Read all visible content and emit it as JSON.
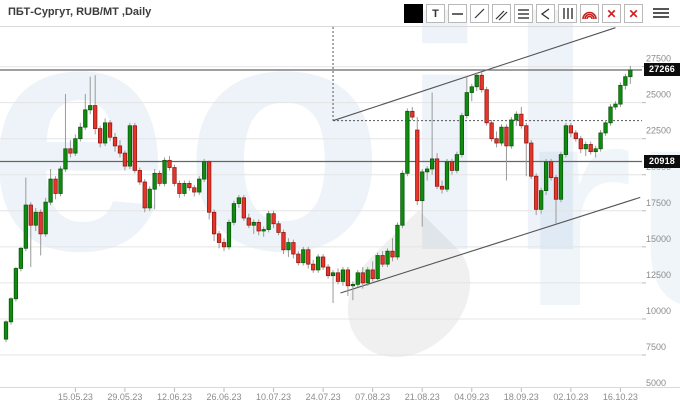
{
  "header": {
    "title": "ПБТ-Сургут, RUB/МТ ,Daily"
  },
  "toolbar": {
    "buttons": [
      {
        "name": "color-swatch",
        "icon": "swatch",
        "label": ""
      },
      {
        "name": "text-tool",
        "icon": "text",
        "label": "T"
      },
      {
        "name": "horizontal-line-tool",
        "icon": "hline",
        "label": ""
      },
      {
        "name": "trend-line-tool",
        "icon": "diag",
        "label": ""
      },
      {
        "name": "parallel-channel-tool",
        "icon": "diag2",
        "label": ""
      },
      {
        "name": "fib-retracement-tool",
        "icon": "hlines3",
        "label": ""
      },
      {
        "name": "pitchfork-tool",
        "icon": "angle",
        "label": ""
      },
      {
        "name": "fib-time-zones-tool",
        "icon": "vlines3",
        "label": ""
      },
      {
        "name": "fib-arcs-tool",
        "icon": "arcs",
        "label": ""
      },
      {
        "name": "remove-drawing-button",
        "icon": "cross",
        "label": "✕"
      },
      {
        "name": "remove-all-drawings-button",
        "icon": "cross",
        "label": "✕"
      }
    ],
    "menu_icon": "hamburger-icon"
  },
  "price_badges": {
    "last": "27266",
    "level": "20918"
  },
  "watermark": {
    "text_left": "eoil",
    "text_right": "ru"
  },
  "chart_data": {
    "type": "candlestick",
    "title": "ПБТ-Сургут",
    "unit": "RUB/МТ",
    "timeframe": "Daily",
    "legend_position": "none",
    "grid": "horizontal",
    "ylim": [
      5000,
      30000
    ],
    "y_ticks": [
      27500,
      25000,
      22500,
      20000,
      17500,
      15000,
      12500,
      10000,
      7500,
      5000
    ],
    "x_tick_labels": [
      "15.05.23",
      "29.05.23",
      "12.06.23",
      "26.06.23",
      "10.07.23",
      "24.07.23",
      "07.08.23",
      "21.08.23",
      "04.09.23",
      "18.09.23",
      "02.10.23",
      "16.10.23"
    ],
    "x_tick_first_index": 14,
    "x_tick_step": 10,
    "last_price": 27266,
    "marked_level": 20918,
    "dashed_level": 23750,
    "colors": {
      "up": "#0f8b0f",
      "up_border": "#0a560a",
      "down": "#e5352b",
      "down_border": "#8f1710",
      "wick": "#9a9a9a",
      "line": "#666666",
      "grid": "#e4e4e4",
      "axis_text": "#8c8c8c"
    },
    "annotations": {
      "upper_trendline": {
        "from": {
          "index": 66,
          "price": 23750
        },
        "to": {
          "index": 123,
          "price": 30200
        }
      },
      "support_trendline": {
        "from": {
          "index": 67.5,
          "price": 11800
        },
        "to": {
          "index": 128,
          "price": 18430
        }
      },
      "dashed_vertical_index": 66
    },
    "candles": [
      [
        8600,
        9900,
        8400,
        9800
      ],
      [
        9800,
        11500,
        9600,
        11400
      ],
      [
        11400,
        13600,
        11200,
        13500
      ],
      [
        13500,
        15000,
        13300,
        14900
      ],
      [
        14900,
        19800,
        14700,
        17900
      ],
      [
        17900,
        18100,
        13600,
        16500
      ],
      [
        16500,
        17700,
        16100,
        17400
      ],
      [
        17400,
        17600,
        14400,
        15900
      ],
      [
        15900,
        18400,
        15700,
        18100
      ],
      [
        18100,
        20400,
        17900,
        19700
      ],
      [
        19700,
        19900,
        18300,
        18700
      ],
      [
        18700,
        20600,
        18500,
        20400
      ],
      [
        20400,
        25600,
        20200,
        21800
      ],
      [
        21800,
        22400,
        21200,
        21500
      ],
      [
        21500,
        22800,
        21300,
        22500
      ],
      [
        22500,
        23600,
        22300,
        23300
      ],
      [
        23300,
        25600,
        23100,
        24500
      ],
      [
        24500,
        26800,
        24200,
        24800
      ],
      [
        24800,
        26900,
        22800,
        23200
      ],
      [
        23200,
        23400,
        21900,
        22200
      ],
      [
        22200,
        23900,
        22000,
        23600
      ],
      [
        23600,
        23800,
        22300,
        22600
      ],
      [
        22600,
        22900,
        21600,
        22000
      ],
      [
        22000,
        22400,
        21200,
        21500
      ],
      [
        21500,
        21700,
        20300,
        20600
      ],
      [
        20600,
        23600,
        20400,
        23400
      ],
      [
        23400,
        23600,
        20100,
        20300
      ],
      [
        20300,
        20500,
        19300,
        19500
      ],
      [
        19500,
        19700,
        17400,
        17700
      ],
      [
        17700,
        19200,
        17500,
        19000
      ],
      [
        19000,
        20400,
        17600,
        20100
      ],
      [
        20100,
        20300,
        19200,
        19400
      ],
      [
        19400,
        21200,
        19200,
        21000
      ],
      [
        21000,
        21300,
        20300,
        20500
      ],
      [
        20500,
        20700,
        19200,
        19400
      ],
      [
        19400,
        19600,
        18400,
        18700
      ],
      [
        18700,
        19600,
        18500,
        19400
      ],
      [
        19400,
        19600,
        18900,
        19100
      ],
      [
        19100,
        19300,
        18500,
        18800
      ],
      [
        18800,
        19900,
        18600,
        19700
      ],
      [
        19700,
        21100,
        19500,
        20900
      ],
      [
        20900,
        21000,
        16900,
        17400
      ],
      [
        17400,
        17600,
        15400,
        15900
      ],
      [
        15900,
        16100,
        14900,
        15300
      ],
      [
        15300,
        15600,
        14700,
        15000
      ],
      [
        15000,
        16900,
        14800,
        16700
      ],
      [
        16700,
        18200,
        16500,
        18000
      ],
      [
        18000,
        18600,
        17700,
        18400
      ],
      [
        18400,
        18600,
        16800,
        17000
      ],
      [
        17000,
        17300,
        16300,
        16500
      ],
      [
        16500,
        16900,
        15900,
        16700
      ],
      [
        16700,
        16900,
        15800,
        16100
      ],
      [
        16100,
        16400,
        15700,
        16200
      ],
      [
        16200,
        17500,
        16000,
        17300
      ],
      [
        17300,
        17500,
        16300,
        16600
      ],
      [
        16600,
        16800,
        15800,
        16000
      ],
      [
        16000,
        16200,
        14500,
        14800
      ],
      [
        14800,
        15600,
        14300,
        15300
      ],
      [
        15300,
        15500,
        14200,
        14500
      ],
      [
        14500,
        14700,
        13700,
        13900
      ],
      [
        13900,
        15000,
        13700,
        14800
      ],
      [
        14800,
        15000,
        13500,
        13800
      ],
      [
        13800,
        14100,
        13200,
        13400
      ],
      [
        13400,
        14500,
        13200,
        14300
      ],
      [
        14300,
        14500,
        13400,
        13600
      ],
      [
        13600,
        13800,
        12800,
        13000
      ],
      [
        13000,
        13400,
        11100,
        13200
      ],
      [
        13200,
        13500,
        12400,
        12600
      ],
      [
        12600,
        13600,
        12300,
        13400
      ],
      [
        13400,
        13600,
        11600,
        12300
      ],
      [
        12300,
        12600,
        11300,
        12400
      ],
      [
        12400,
        13400,
        12200,
        13200
      ],
      [
        13200,
        13600,
        12100,
        12500
      ],
      [
        12500,
        13600,
        12300,
        13400
      ],
      [
        13400,
        14000,
        12600,
        12800
      ],
      [
        12800,
        14600,
        12700,
        14400
      ],
      [
        14400,
        14700,
        13600,
        13800
      ],
      [
        13800,
        14900,
        13600,
        14700
      ],
      [
        14700,
        15600,
        14000,
        14300
      ],
      [
        14300,
        16700,
        14100,
        16500
      ],
      [
        16500,
        20300,
        16300,
        20100
      ],
      [
        20100,
        24600,
        19900,
        24400
      ],
      [
        24400,
        24700,
        23800,
        24000
      ],
      [
        23100,
        24000,
        17900,
        18200
      ],
      [
        18200,
        20400,
        16400,
        20200
      ],
      [
        20200,
        20600,
        19600,
        20400
      ],
      [
        20400,
        25700,
        20000,
        21100
      ],
      [
        21100,
        21500,
        19000,
        19200
      ],
      [
        19200,
        19600,
        18700,
        19000
      ],
      [
        19000,
        21100,
        18800,
        20900
      ],
      [
        20900,
        21100,
        20000,
        20300
      ],
      [
        20300,
        21600,
        20100,
        21400
      ],
      [
        21400,
        24300,
        21200,
        24100
      ],
      [
        24100,
        26800,
        23900,
        25700
      ],
      [
        25700,
        26300,
        25100,
        26100
      ],
      [
        26100,
        27100,
        25800,
        26900
      ],
      [
        26900,
        27100,
        25700,
        25900
      ],
      [
        25900,
        26100,
        23400,
        23600
      ],
      [
        23600,
        23800,
        22300,
        22500
      ],
      [
        22500,
        23000,
        21900,
        22200
      ],
      [
        22200,
        23500,
        22000,
        23300
      ],
      [
        23300,
        23500,
        19600,
        22000
      ],
      [
        22000,
        24000,
        21800,
        23800
      ],
      [
        23800,
        24400,
        23400,
        24200
      ],
      [
        24200,
        24700,
        23200,
        23400
      ],
      [
        23400,
        23600,
        19900,
        22200
      ],
      [
        22200,
        22400,
        19700,
        19900
      ],
      [
        19900,
        20100,
        17200,
        17600
      ],
      [
        17600,
        19100,
        17300,
        18900
      ],
      [
        18900,
        21100,
        18600,
        20900
      ],
      [
        20900,
        21100,
        19600,
        19800
      ],
      [
        19800,
        20000,
        16600,
        18300
      ],
      [
        18300,
        21600,
        18100,
        21400
      ],
      [
        21400,
        23600,
        21200,
        23400
      ],
      [
        23400,
        23600,
        22600,
        22900
      ],
      [
        22900,
        23100,
        22300,
        22500
      ],
      [
        22500,
        22700,
        21500,
        21800
      ],
      [
        21800,
        22300,
        21300,
        22100
      ],
      [
        22100,
        22300,
        21400,
        21600
      ],
      [
        21600,
        22000,
        21200,
        21800
      ],
      [
        21800,
        23100,
        21600,
        22900
      ],
      [
        22900,
        23800,
        22700,
        23600
      ],
      [
        23600,
        24900,
        23400,
        24700
      ],
      [
        24700,
        25100,
        24500,
        24900
      ],
      [
        24900,
        26400,
        24700,
        26200
      ],
      [
        26200,
        27000,
        25900,
        26800
      ],
      [
        26800,
        27550,
        26300,
        27266
      ]
    ]
  }
}
